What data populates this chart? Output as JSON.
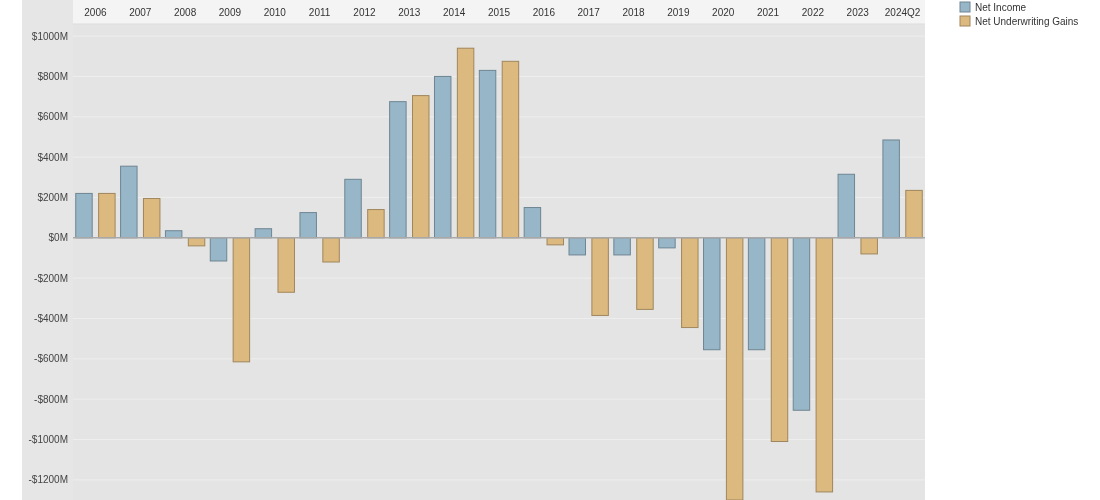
{
  "chart_data": {
    "type": "bar",
    "categories": [
      "2006",
      "2007",
      "2008",
      "2009",
      "2010",
      "2011",
      "2012",
      "2013",
      "2014",
      "2015",
      "2016",
      "2017",
      "2018",
      "2019",
      "2020",
      "2021",
      "2022",
      "2023",
      "2024Q2"
    ],
    "series": [
      {
        "name": "Net Income",
        "color": "#97b7c9",
        "values": [
          220,
          355,
          35,
          -115,
          45,
          125,
          290,
          675,
          800,
          830,
          150,
          -85,
          -85,
          -50,
          -555,
          -555,
          -855,
          315,
          485
        ]
      },
      {
        "name": "Net Underwriting Gains",
        "color": "#dcb97f",
        "values": [
          220,
          195,
          -40,
          -615,
          -270,
          -120,
          140,
          705,
          940,
          875,
          -35,
          -385,
          -355,
          -445,
          -1300,
          -1010,
          -1260,
          -80,
          235
        ]
      }
    ],
    "ylim": [
      -1300,
      1060
    ],
    "yticks": [
      {
        "value": 1000,
        "label": "$1000M"
      },
      {
        "value": 800,
        "label": "$800M"
      },
      {
        "value": 600,
        "label": "$600M"
      },
      {
        "value": 400,
        "label": "$400M"
      },
      {
        "value": 200,
        "label": "$200M"
      },
      {
        "value": 0,
        "label": "$0M"
      },
      {
        "value": -200,
        "label": "-$200M"
      },
      {
        "value": -400,
        "label": "-$400M"
      },
      {
        "value": -600,
        "label": "-$600M"
      },
      {
        "value": -800,
        "label": "-$800M"
      },
      {
        "value": -1000,
        "label": "-$1000M"
      },
      {
        "value": -1200,
        "label": "-$1200M"
      }
    ],
    "grid": "y",
    "legend": "top right"
  }
}
